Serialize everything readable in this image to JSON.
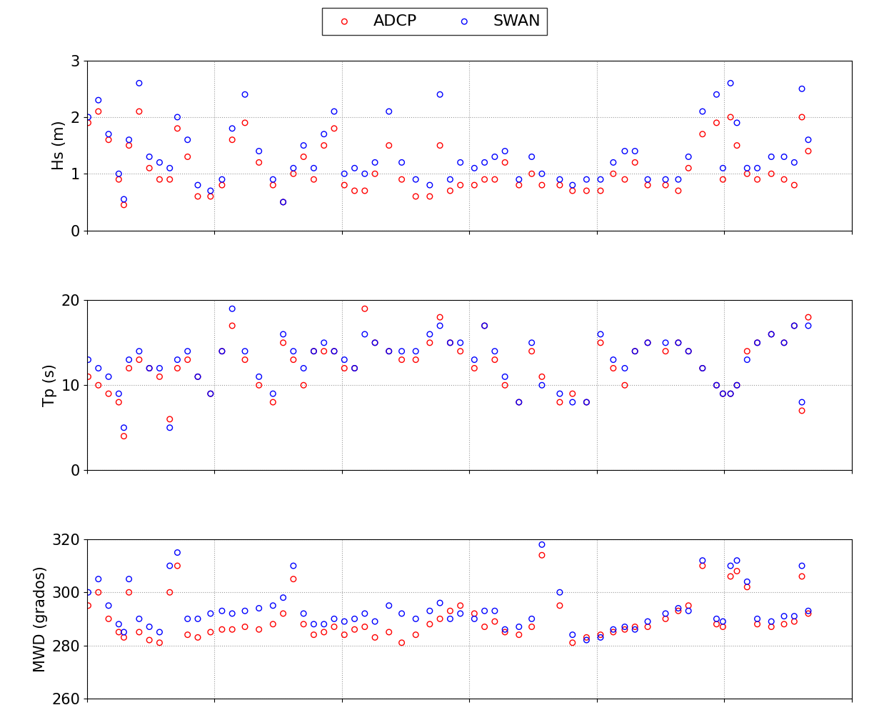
{
  "chart_data": [
    {
      "type": "scatter",
      "y_label": "Hs (m)",
      "legend": "upper center",
      "grid": true,
      "tick_labels": "y",
      "marker": "o",
      "xlim": [
        0,
        6
      ],
      "xticks": [
        0,
        1,
        2,
        3,
        4,
        5,
        6
      ],
      "ylim": [
        0,
        3
      ],
      "yticks": [
        0,
        1,
        2,
        3
      ],
      "x": [
        0.01,
        0.09,
        0.17,
        0.25,
        0.29,
        0.33,
        0.41,
        0.49,
        0.57,
        0.65,
        0.71,
        0.79,
        0.87,
        0.97,
        1.06,
        1.14,
        1.24,
        1.35,
        1.46,
        1.54,
        1.62,
        1.7,
        1.78,
        1.86,
        1.94,
        2.02,
        2.1,
        2.18,
        2.26,
        2.37,
        2.47,
        2.58,
        2.69,
        2.77,
        2.85,
        2.93,
        3.04,
        3.12,
        3.2,
        3.28,
        3.39,
        3.49,
        3.57,
        3.71,
        3.81,
        3.92,
        4.03,
        4.13,
        4.22,
        4.3,
        4.4,
        4.54,
        4.64,
        4.72,
        4.83,
        4.94,
        4.99,
        5.05,
        5.1,
        5.18,
        5.26,
        5.37,
        5.47,
        5.55,
        5.61,
        5.66
      ],
      "series": [
        {
          "name": "ADCP",
          "color": "#ff0000",
          "values": [
            1.9,
            2.1,
            1.6,
            0.9,
            0.45,
            1.5,
            2.1,
            1.1,
            0.9,
            0.9,
            1.8,
            1.3,
            0.6,
            0.6,
            0.8,
            1.6,
            1.9,
            1.2,
            0.8,
            0.5,
            1.0,
            1.3,
            0.9,
            1.5,
            1.8,
            0.8,
            0.7,
            0.7,
            1.0,
            1.5,
            0.9,
            0.6,
            0.6,
            1.5,
            0.7,
            0.8,
            0.8,
            0.9,
            0.9,
            1.2,
            0.8,
            1.0,
            0.8,
            0.8,
            0.7,
            0.7,
            0.7,
            1.0,
            0.9,
            1.2,
            0.8,
            0.8,
            0.7,
            1.1,
            1.7,
            1.9,
            0.9,
            2.0,
            1.5,
            1.0,
            0.9,
            1.0,
            0.9,
            0.8,
            2.0,
            1.4
          ]
        },
        {
          "name": "SWAN",
          "color": "#0000ff",
          "values": [
            2.0,
            2.3,
            1.7,
            1.0,
            0.55,
            1.6,
            2.6,
            1.3,
            1.2,
            1.1,
            2.0,
            1.6,
            0.8,
            0.7,
            0.9,
            1.8,
            2.4,
            1.4,
            0.9,
            0.5,
            1.1,
            1.5,
            1.1,
            1.7,
            2.1,
            1.0,
            1.1,
            1.0,
            1.2,
            2.1,
            1.2,
            0.9,
            0.8,
            2.4,
            0.9,
            1.2,
            1.1,
            1.2,
            1.3,
            1.4,
            0.9,
            1.3,
            1.0,
            0.9,
            0.8,
            0.9,
            0.9,
            1.2,
            1.4,
            1.4,
            0.9,
            0.9,
            0.9,
            1.3,
            2.1,
            2.4,
            1.1,
            2.6,
            1.9,
            1.1,
            1.1,
            1.3,
            1.3,
            1.2,
            2.5,
            1.6
          ]
        }
      ]
    },
    {
      "type": "scatter",
      "y_label": "Tp (s)",
      "grid": true,
      "tick_labels": "y",
      "marker": "o",
      "xlim": [
        0,
        6
      ],
      "xticks": [
        0,
        1,
        2,
        3,
        4,
        5,
        6
      ],
      "ylim": [
        0,
        20
      ],
      "yticks": [
        0,
        10,
        20
      ],
      "x": [
        0.01,
        0.09,
        0.17,
        0.25,
        0.29,
        0.33,
        0.41,
        0.49,
        0.57,
        0.65,
        0.71,
        0.79,
        0.87,
        0.97,
        1.06,
        1.14,
        1.24,
        1.35,
        1.46,
        1.54,
        1.62,
        1.7,
        1.78,
        1.86,
        1.94,
        2.02,
        2.1,
        2.18,
        2.26,
        2.37,
        2.47,
        2.58,
        2.69,
        2.77,
        2.85,
        2.93,
        3.04,
        3.12,
        3.2,
        3.28,
        3.39,
        3.49,
        3.57,
        3.71,
        3.81,
        3.92,
        4.03,
        4.13,
        4.22,
        4.3,
        4.4,
        4.54,
        4.64,
        4.72,
        4.83,
        4.94,
        4.99,
        5.05,
        5.1,
        5.18,
        5.26,
        5.37,
        5.47,
        5.55,
        5.61,
        5.66
      ],
      "series": [
        {
          "name": "ADCP",
          "color": "#ff0000",
          "values": [
            11,
            10,
            9,
            8,
            4,
            12,
            13,
            12,
            11,
            6,
            12,
            13,
            11,
            9,
            14,
            17,
            13,
            10,
            8,
            15,
            13,
            10,
            14,
            14,
            14,
            12,
            12,
            19,
            15,
            14,
            13,
            13,
            15,
            18,
            15,
            14,
            12,
            17,
            13,
            10,
            8,
            14,
            11,
            8,
            9,
            8,
            15,
            12,
            10,
            14,
            15,
            14,
            15,
            14,
            12,
            10,
            9,
            9,
            10,
            14,
            15,
            16,
            15,
            17,
            7,
            18
          ]
        },
        {
          "name": "SWAN",
          "color": "#0000ff",
          "values": [
            13,
            12,
            11,
            9,
            5,
            13,
            14,
            12,
            12,
            5,
            13,
            14,
            11,
            9,
            14,
            19,
            14,
            11,
            9,
            16,
            14,
            12,
            14,
            15,
            14,
            13,
            12,
            16,
            15,
            14,
            14,
            14,
            16,
            17,
            15,
            15,
            13,
            17,
            14,
            11,
            8,
            15,
            10,
            9,
            8,
            8,
            16,
            13,
            12,
            14,
            15,
            15,
            15,
            14,
            12,
            10,
            9,
            9,
            10,
            13,
            15,
            16,
            15,
            17,
            8,
            17
          ]
        }
      ]
    },
    {
      "type": "scatter",
      "y_label": "MWD (grados)",
      "grid": true,
      "tick_labels": "y",
      "marker": "o",
      "xlim": [
        0,
        6
      ],
      "xticks": [
        0,
        1,
        2,
        3,
        4,
        5,
        6
      ],
      "ylim": [
        260,
        320
      ],
      "yticks": [
        260,
        280,
        300,
        320
      ],
      "x": [
        0.01,
        0.09,
        0.17,
        0.25,
        0.29,
        0.33,
        0.41,
        0.49,
        0.57,
        0.65,
        0.71,
        0.79,
        0.87,
        0.97,
        1.06,
        1.14,
        1.24,
        1.35,
        1.46,
        1.54,
        1.62,
        1.7,
        1.78,
        1.86,
        1.94,
        2.02,
        2.1,
        2.18,
        2.26,
        2.37,
        2.47,
        2.58,
        2.69,
        2.77,
        2.85,
        2.93,
        3.04,
        3.12,
        3.2,
        3.28,
        3.39,
        3.49,
        3.57,
        3.71,
        3.81,
        3.92,
        4.03,
        4.13,
        4.22,
        4.3,
        4.4,
        4.54,
        4.64,
        4.72,
        4.83,
        4.94,
        4.99,
        5.05,
        5.1,
        5.18,
        5.26,
        5.37,
        5.47,
        5.55,
        5.61,
        5.66
      ],
      "series": [
        {
          "name": "ADCP",
          "color": "#ff0000",
          "values": [
            295,
            300,
            290,
            285,
            283,
            300,
            285,
            282,
            281,
            300,
            310,
            284,
            283,
            285,
            286,
            286,
            287,
            286,
            288,
            292,
            305,
            288,
            284,
            285,
            287,
            284,
            286,
            287,
            283,
            285,
            281,
            284,
            288,
            290,
            293,
            295,
            292,
            287,
            289,
            285,
            284,
            287,
            314,
            295,
            281,
            283,
            284,
            285,
            286,
            287,
            287,
            290,
            293,
            295,
            310,
            288,
            287,
            306,
            308,
            302,
            288,
            287,
            288,
            289,
            306,
            292
          ]
        },
        {
          "name": "SWAN",
          "color": "#0000ff",
          "values": [
            300,
            305,
            295,
            288,
            285,
            305,
            290,
            287,
            285,
            310,
            315,
            290,
            290,
            292,
            293,
            292,
            293,
            294,
            295,
            298,
            310,
            292,
            288,
            288,
            290,
            289,
            290,
            292,
            289,
            295,
            292,
            290,
            293,
            296,
            290,
            292,
            290,
            293,
            293,
            286,
            287,
            290,
            318,
            300,
            284,
            282,
            283,
            286,
            287,
            286,
            289,
            292,
            294,
            293,
            312,
            290,
            289,
            310,
            312,
            304,
            290,
            289,
            291,
            291,
            310,
            293
          ]
        }
      ]
    }
  ]
}
